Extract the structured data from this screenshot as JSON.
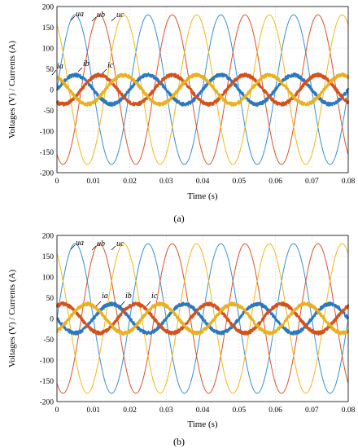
{
  "chart_data": [
    {
      "type": "line",
      "caption": "(a)",
      "xlabel": "Time (s)",
      "ylabel": "Voltages (V) / Currents (A)",
      "xlim": [
        0,
        0.08
      ],
      "ylim": [
        -200,
        200
      ],
      "xticks": [
        "0",
        "0.01",
        "0.02",
        "0.03",
        "0.04",
        "0.05",
        "0.06",
        "0.07",
        "0.08"
      ],
      "yticks": [
        "200",
        "150",
        "100",
        "50",
        "0",
        "-50",
        "-100",
        "-150",
        "-200"
      ],
      "grid": true,
      "frequency_hz": 50,
      "series": [
        {
          "name": "ua",
          "kind": "voltage",
          "amplitude": 180,
          "phase_deg": 0,
          "color": "#3a8fd0"
        },
        {
          "name": "ub",
          "kind": "voltage",
          "amplitude": 180,
          "phase_deg": -120,
          "color": "#d9542b"
        },
        {
          "name": "uc",
          "kind": "voltage",
          "amplitude": 180,
          "phase_deg": 120,
          "color": "#f0b81d"
        },
        {
          "name": "ia",
          "kind": "current",
          "amplitude": 35,
          "phase_deg": 0,
          "color": "#2b78c0"
        },
        {
          "name": "ib",
          "kind": "current",
          "amplitude": 35,
          "phase_deg": -120,
          "color": "#d4511c"
        },
        {
          "name": "ic",
          "kind": "current",
          "amplitude": 35,
          "phase_deg": 120,
          "color": "#eab020"
        }
      ]
    },
    {
      "type": "line",
      "caption": "(b)",
      "xlabel": "Time (s)",
      "ylabel": "Voltages (V) / Currents (A)",
      "xlim": [
        0,
        0.08
      ],
      "ylim": [
        -200,
        200
      ],
      "xticks": [
        "0",
        "0.01",
        "0.02",
        "0.03",
        "0.04",
        "0.05",
        "0.06",
        "0.07",
        "0.08"
      ],
      "yticks": [
        "200",
        "150",
        "100",
        "50",
        "0",
        "-50",
        "-100",
        "-150",
        "-200"
      ],
      "grid": true,
      "frequency_hz": 50,
      "series": [
        {
          "name": "ua",
          "kind": "voltage",
          "amplitude": 180,
          "phase_deg": 0,
          "color": "#3a8fd0"
        },
        {
          "name": "ub",
          "kind": "voltage",
          "amplitude": 180,
          "phase_deg": -120,
          "color": "#d9542b"
        },
        {
          "name": "uc",
          "kind": "voltage",
          "amplitude": 180,
          "phase_deg": 120,
          "color": "#f0b81d"
        },
        {
          "name": "ia",
          "kind": "current",
          "amplitude": 35,
          "phase_deg": 180,
          "color": "#2b78c0"
        },
        {
          "name": "ib",
          "kind": "current",
          "amplitude": 35,
          "phase_deg": 60,
          "color": "#d4511c"
        },
        {
          "name": "ic",
          "kind": "current",
          "amplitude": 35,
          "phase_deg": -60,
          "color": "#eab020"
        }
      ]
    }
  ]
}
